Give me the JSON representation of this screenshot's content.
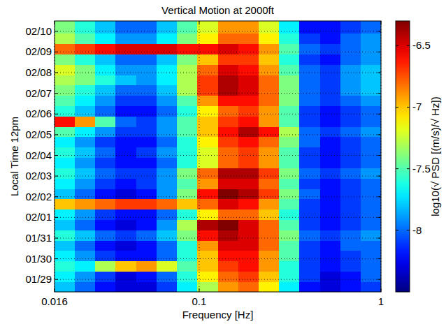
{
  "chart_data": {
    "type": "heatmap",
    "title": "Vertical Motion at 2000ft",
    "x_label": "Frequency [Hz]",
    "y_label": "Local Time 12pm",
    "log": "x",
    "grid": true,
    "xlim": [
      0.016,
      1
    ],
    "xticks": [
      0.016,
      0.1,
      1
    ],
    "ylim": [
      -0.6,
      12.5
    ],
    "yticks": [
      {
        "value": 0,
        "label": "01/29"
      },
      {
        "value": 1,
        "label": "01/30"
      },
      {
        "value": 2,
        "label": "01/31"
      },
      {
        "value": 3,
        "label": "02/01"
      },
      {
        "value": 4,
        "label": "02/02"
      },
      {
        "value": 5,
        "label": "02/03"
      },
      {
        "value": 6,
        "label": "02/04"
      },
      {
        "value": 7,
        "label": "02/05"
      },
      {
        "value": 8,
        "label": "02/06"
      },
      {
        "value": 9,
        "label": "02/07"
      },
      {
        "value": 10,
        "label": "02/08"
      },
      {
        "value": 11,
        "label": "02/09"
      },
      {
        "value": 12,
        "label": "02/10"
      }
    ],
    "x_edges": [
      0.016,
      0.0207,
      0.0268,
      0.0347,
      0.045,
      0.0583,
      0.0755,
      0.0977,
      0.1266,
      0.164,
      0.212,
      0.275,
      0.356,
      0.461,
      0.597,
      0.773,
      1
    ],
    "y_edges": [
      -0.6,
      -0.1,
      0.4,
      0.9,
      1.4,
      1.9,
      2.4,
      2.9,
      3.4,
      3.9,
      4.4,
      4.9,
      5.4,
      5.9,
      6.4,
      6.9,
      7.4,
      7.9,
      8.4,
      8.9,
      9.4,
      9.9,
      10.4,
      10.9,
      11.4,
      11.9,
      12.5
    ],
    "z": [
      [
        -7.8,
        -8.0,
        -8.2,
        -8.3,
        -8.3,
        -8.1,
        -7.7,
        -7.3,
        -6.9,
        -6.8,
        -7.1,
        -7.7,
        -8.2,
        -8.3,
        -8.2,
        -8.1
      ],
      [
        -7.7,
        -7.9,
        -8.1,
        -8.3,
        -8.2,
        -8.0,
        -7.6,
        -7.1,
        -6.8,
        -6.7,
        -7.0,
        -7.6,
        -8.1,
        -8.3,
        -8.2,
        -8.0
      ],
      [
        -7.6,
        -7.7,
        -7.3,
        -7.0,
        -6.9,
        -7.2,
        -7.5,
        -7.0,
        -6.7,
        -6.6,
        -6.9,
        -7.6,
        -8.1,
        -8.2,
        -8.1,
        -8.0
      ],
      [
        -7.7,
        -7.9,
        -8.1,
        -8.2,
        -8.2,
        -8.0,
        -7.6,
        -7.0,
        -6.6,
        -6.6,
        -6.9,
        -7.5,
        -8.1,
        -8.2,
        -8.1,
        -8.0
      ],
      [
        -7.8,
        -8.0,
        -8.2,
        -8.3,
        -8.2,
        -8.0,
        -7.6,
        -6.9,
        -6.5,
        -6.5,
        -6.8,
        -7.5,
        -8.1,
        -8.2,
        -8.0,
        -8.0
      ],
      [
        -7.6,
        -7.8,
        -8.0,
        -8.1,
        -8.0,
        -7.8,
        -7.4,
        -6.6,
        -6.4,
        -6.5,
        -6.8,
        -7.4,
        -8.0,
        -8.1,
        -8.0,
        -7.9
      ],
      [
        -7.8,
        -8.0,
        -8.2,
        -8.3,
        -8.2,
        -7.9,
        -7.3,
        -6.4,
        -6.3,
        -6.5,
        -6.8,
        -7.5,
        -8.1,
        -8.2,
        -8.1,
        -8.0
      ],
      [
        -7.7,
        -7.9,
        -8.1,
        -8.2,
        -8.2,
        -8.0,
        -7.6,
        -7.1,
        -6.8,
        -6.8,
        -7.0,
        -7.6,
        -8.1,
        -8.2,
        -8.1,
        -8.0
      ],
      [
        -7.0,
        -6.9,
        -6.8,
        -6.7,
        -6.7,
        -6.8,
        -7.0,
        -6.8,
        -6.5,
        -6.6,
        -6.9,
        -7.5,
        -8.1,
        -8.2,
        -8.1,
        -8.0
      ],
      [
        -7.8,
        -8.0,
        -8.2,
        -8.3,
        -8.2,
        -7.9,
        -7.4,
        -6.6,
        -6.3,
        -6.4,
        -6.7,
        -7.4,
        -8.0,
        -8.2,
        -8.1,
        -8.0
      ],
      [
        -7.7,
        -7.9,
        -8.1,
        -8.2,
        -8.1,
        -7.9,
        -7.5,
        -6.9,
        -6.5,
        -6.5,
        -6.8,
        -7.5,
        -8.1,
        -8.2,
        -8.1,
        -8.0
      ],
      [
        -7.6,
        -7.8,
        -8.0,
        -8.1,
        -8.1,
        -7.9,
        -7.4,
        -6.8,
        -6.4,
        -6.4,
        -6.7,
        -7.4,
        -8.0,
        -8.1,
        -8.0,
        -7.9
      ],
      [
        -7.7,
        -7.9,
        -8.1,
        -8.2,
        -8.2,
        -8.0,
        -7.6,
        -7.2,
        -6.8,
        -6.7,
        -6.9,
        -7.5,
        -8.1,
        -8.2,
        -8.1,
        -8.0
      ],
      [
        -7.6,
        -7.8,
        -8.0,
        -8.2,
        -8.1,
        -7.9,
        -7.6,
        -7.2,
        -6.8,
        -6.7,
        -6.9,
        -7.5,
        -8.1,
        -8.2,
        -8.1,
        -8.0
      ],
      [
        -7.7,
        -7.9,
        -8.1,
        -8.2,
        -8.2,
        -8.0,
        -7.6,
        -7.1,
        -6.7,
        -6.6,
        -6.8,
        -7.4,
        -8.0,
        -8.2,
        -8.1,
        -8.0
      ],
      [
        -7.5,
        -7.7,
        -7.9,
        -8.1,
        -8.1,
        -7.9,
        -7.5,
        -7.0,
        -6.6,
        -6.4,
        -6.6,
        -7.3,
        -8.0,
        -8.1,
        -8.0,
        -7.9
      ],
      [
        -6.6,
        -6.9,
        -7.5,
        -8.0,
        -8.1,
        -7.9,
        -7.5,
        -7.0,
        -6.7,
        -6.6,
        -6.9,
        -7.5,
        -8.1,
        -8.2,
        -8.1,
        -8.0
      ],
      [
        -7.6,
        -7.8,
        -8.0,
        -8.2,
        -8.2,
        -8.0,
        -7.6,
        -7.1,
        -6.8,
        -6.7,
        -6.9,
        -7.5,
        -8.1,
        -8.2,
        -8.1,
        -8.0
      ],
      [
        -7.5,
        -7.7,
        -7.9,
        -8.1,
        -8.1,
        -7.9,
        -7.5,
        -6.9,
        -6.6,
        -6.6,
        -6.8,
        -7.4,
        -8.0,
        -8.1,
        -8.0,
        -7.9
      ],
      [
        -7.4,
        -7.6,
        -7.8,
        -8.0,
        -8.0,
        -7.8,
        -7.3,
        -6.7,
        -6.4,
        -6.5,
        -6.8,
        -7.4,
        -8.0,
        -8.1,
        -7.9,
        -7.8
      ],
      [
        -7.3,
        -7.4,
        -7.6,
        -7.8,
        -7.9,
        -7.7,
        -7.3,
        -6.7,
        -6.4,
        -6.5,
        -6.8,
        -7.4,
        -8.0,
        -8.1,
        -7.9,
        -7.8
      ],
      [
        -7.2,
        -7.4,
        -7.7,
        -7.9,
        -7.9,
        -7.7,
        -7.3,
        -6.8,
        -6.5,
        -6.6,
        -6.9,
        -7.5,
        -8.0,
        -8.1,
        -7.9,
        -7.8
      ],
      [
        -7.4,
        -7.6,
        -7.8,
        -8.0,
        -8.0,
        -7.8,
        -7.4,
        -7.0,
        -6.7,
        -6.7,
        -7.0,
        -7.6,
        -8.1,
        -8.2,
        -8.0,
        -7.9
      ],
      [
        -6.8,
        -6.7,
        -6.6,
        -6.5,
        -6.5,
        -6.5,
        -6.6,
        -6.6,
        -6.5,
        -6.6,
        -6.9,
        -7.5,
        -8.0,
        -8.1,
        -8.0,
        -7.9
      ],
      [
        -7.3,
        -7.5,
        -7.7,
        -7.9,
        -7.9,
        -7.7,
        -7.4,
        -7.1,
        -6.8,
        -6.8,
        -7.1,
        -7.6,
        -8.1,
        -8.2,
        -8.0,
        -7.9
      ],
      [
        -7.4,
        -7.6,
        -7.8,
        -8.0,
        -8.0,
        -7.8,
        -7.5,
        -7.2,
        -6.9,
        -6.9,
        -7.2,
        -7.7,
        -8.2,
        -8.2,
        -8.1,
        -8.0
      ]
    ],
    "color_label": "log10(√ PSD [(m/s)/√ Hz])",
    "clim": [
      -8.5,
      -6.3
    ],
    "cticks": [
      -8,
      -7.5,
      -7,
      -6.5
    ]
  }
}
